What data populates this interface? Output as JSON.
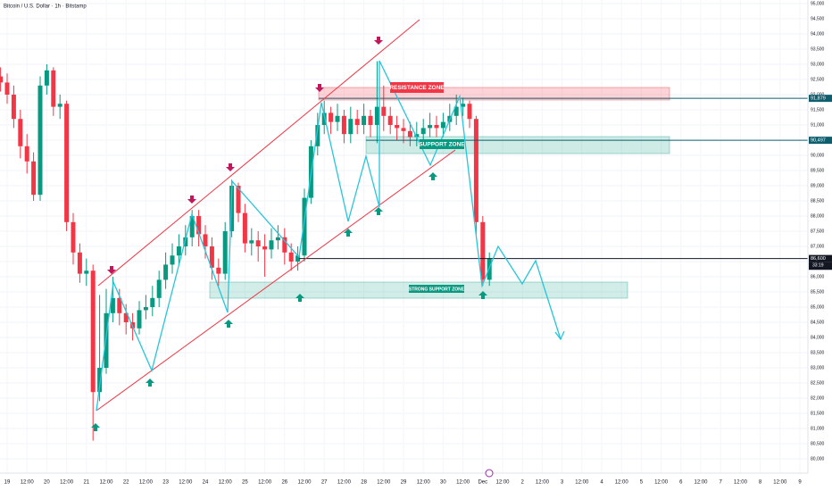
{
  "chart_data": {
    "type": "candlestick",
    "title": "Bitcoin / U.S. Dollar · 1h · Bitstamp",
    "up_color": "#089981",
    "down_color": "#f23645",
    "grid": true,
    "ylim": [
      79765,
      95118
    ],
    "yticks": [
      {
        "value": 80000,
        "label": "80,000"
      },
      {
        "value": 80500,
        "label": "80,500"
      },
      {
        "value": 81000,
        "label": "81,000"
      },
      {
        "value": 81500,
        "label": "81,500"
      },
      {
        "value": 82000,
        "label": "82,000"
      },
      {
        "value": 82500,
        "label": "82,500"
      },
      {
        "value": 83000,
        "label": "83,000"
      },
      {
        "value": 83500,
        "label": "83,500"
      },
      {
        "value": 84000,
        "label": "84,000"
      },
      {
        "value": 84500,
        "label": "84,500"
      },
      {
        "value": 85000,
        "label": "85,000"
      },
      {
        "value": 85500,
        "label": "85,500"
      },
      {
        "value": 86000,
        "label": "86,000"
      },
      {
        "value": 86500,
        "label": "86,500"
      },
      {
        "value": 87000,
        "label": "87,000"
      },
      {
        "value": 87500,
        "label": "87,500"
      },
      {
        "value": 88000,
        "label": "88,000"
      },
      {
        "value": 88500,
        "label": "88,500"
      },
      {
        "value": 89000,
        "label": "89,000"
      },
      {
        "value": 89500,
        "label": "89,500"
      },
      {
        "value": 90000,
        "label": "90,000"
      },
      {
        "value": 90500,
        "label": "90,500"
      },
      {
        "value": 91000,
        "label": "91,000"
      },
      {
        "value": 91500,
        "label": "91,500"
      },
      {
        "value": 92000,
        "label": "92,000"
      },
      {
        "value": 92500,
        "label": "92,500"
      },
      {
        "value": 93000,
        "label": "93,000"
      },
      {
        "value": 93500,
        "label": "93,500"
      },
      {
        "value": 94000,
        "label": "94,000"
      },
      {
        "value": 94500,
        "label": "94,500"
      },
      {
        "value": 95000,
        "label": "95,000"
      }
    ],
    "x_labels": [
      "19",
      "12:00",
      "20",
      "12:00",
      "21",
      "12:00",
      "22",
      "12:00",
      "23",
      "12:00",
      "24",
      "12:00",
      "25",
      "12:00",
      "26",
      "12:00",
      "27",
      "12:00",
      "28",
      "12:00",
      "29",
      "12:00",
      "30",
      "12:00",
      "Dec",
      "12:00",
      "2",
      "12:00",
      "3",
      "12:00",
      "4",
      "12:00",
      "5",
      "12:00",
      "6",
      "12:00",
      "7",
      "12:00",
      "8",
      "12:00",
      "9"
    ],
    "open": [
      92600,
      92400,
      92000,
      91200,
      90300,
      89800,
      88700,
      92300,
      92800,
      91600,
      91700,
      87800,
      86800,
      86100,
      86200,
      82200,
      83000,
      84800,
      85300,
      84800,
      84500,
      84300,
      84900,
      85000,
      85300,
      85900,
      86400,
      86700,
      87000,
      87300,
      88000,
      87400,
      87000,
      86300,
      86100,
      87500,
      89000,
      88100,
      87100,
      87200,
      87000,
      86900,
      87200,
      87300,
      86800,
      86500,
      86700,
      88600,
      90300,
      91000,
      91400,
      91100,
      91300,
      90700,
      91200,
      91000,
      91300,
      91000,
      91600,
      91300,
      91000,
      90900,
      90800,
      90600,
      90700,
      90900,
      91000,
      90900,
      91100,
      91300,
      91600,
      91700,
      91200,
      87800,
      85900
    ],
    "high": [
      92900,
      92700,
      92300,
      91500,
      90700,
      90100,
      92600,
      93000,
      92900,
      92000,
      91800,
      88100,
      87100,
      86600,
      86400,
      85400,
      85600,
      86000,
      85600,
      85100,
      84800,
      85200,
      85400,
      85700,
      86200,
      86800,
      87100,
      87400,
      87700,
      88200,
      88200,
      87700,
      87300,
      86600,
      87800,
      89200,
      89100,
      88400,
      87600,
      87500,
      87400,
      87600,
      87700,
      87600,
      87100,
      87000,
      88900,
      90500,
      91400,
      91800,
      91600,
      91700,
      91500,
      91600,
      91500,
      91700,
      91500,
      93100,
      92300,
      91600,
      91300,
      91200,
      91100,
      91100,
      91200,
      91400,
      91300,
      91400,
      91700,
      92000,
      91900,
      91800,
      91300,
      88000,
      86800
    ],
    "low": [
      92100,
      91700,
      90900,
      89900,
      89400,
      88500,
      88500,
      92000,
      91300,
      91200,
      87500,
      86400,
      85800,
      85700,
      80600,
      81900,
      82800,
      84500,
      84400,
      84100,
      83900,
      84100,
      84600,
      84700,
      85000,
      85600,
      86100,
      86400,
      86700,
      87000,
      87000,
      86600,
      85900,
      85700,
      85900,
      87300,
      87800,
      86800,
      86700,
      86500,
      86000,
      86600,
      86900,
      86400,
      86200,
      86200,
      86500,
      88400,
      90000,
      90700,
      90700,
      90800,
      90400,
      90400,
      90700,
      90700,
      90600,
      90400,
      90800,
      90700,
      90500,
      90400,
      90300,
      90300,
      90400,
      90600,
      90600,
      90600,
      90800,
      91000,
      91300,
      90900,
      87400,
      85700,
      85700
    ],
    "close": [
      92400,
      92000,
      91200,
      90300,
      89800,
      88700,
      92300,
      92800,
      91600,
      91700,
      87800,
      86800,
      86100,
      86200,
      82200,
      83000,
      84800,
      85300,
      84800,
      84500,
      84300,
      84900,
      85000,
      85300,
      85900,
      86400,
      86700,
      87000,
      87300,
      88000,
      87400,
      87000,
      86300,
      86100,
      87500,
      89000,
      88100,
      87100,
      87200,
      87000,
      86900,
      87200,
      87300,
      86800,
      86500,
      86700,
      88600,
      90300,
      91000,
      91400,
      91100,
      91300,
      90700,
      91200,
      91000,
      91300,
      91000,
      91600,
      91300,
      91000,
      90900,
      90800,
      90600,
      90700,
      90900,
      91000,
      90900,
      91100,
      91300,
      91600,
      91700,
      91200,
      87800,
      85900,
      86600
    ],
    "price_lines": [
      {
        "value": 91879,
        "label": "91,879",
        "color": "#0f5e6e"
      },
      {
        "value": 90497,
        "label": "90,497",
        "color": "#0f5e6e"
      },
      {
        "value": 86600,
        "label": "86,600",
        "color": "#131722"
      },
      {
        "value": 86493,
        "label": "86,493",
        "color": "#131722"
      }
    ],
    "countdown": "33:19",
    "zones": [
      "RESISTANCE ZONE",
      "SUPPORT ZONE",
      "STRONG SUPPORT ZONE"
    ]
  }
}
